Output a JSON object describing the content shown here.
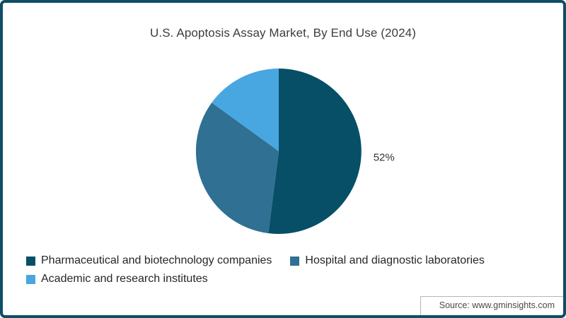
{
  "window": {
    "background_color": "#ffffff",
    "frame_border_color": "#0f4e66"
  },
  "chart_data": {
    "type": "pie",
    "title": "U.S. Apoptosis Assay Market, By End Use (2024)",
    "unit": "percent",
    "start_angle_deg": 0,
    "direction": "clockwise",
    "legend_position": "bottom-left",
    "grid": false,
    "source": "Source: www.gminsights.com",
    "slices": [
      {
        "name": "Pharmaceutical and biotechnology companies",
        "value": 52,
        "color": "#064f67",
        "data_label": "52%"
      },
      {
        "name": "Hospital and diagnostic laboratories",
        "value": 33,
        "color": "#2f7093",
        "data_label": ""
      },
      {
        "name": "Academic and research institutes",
        "value": 15,
        "color": "#48a7e0",
        "data_label": ""
      }
    ]
  },
  "text_colors": {
    "title": "#3d3d3d",
    "legend": "#262626",
    "data_label": "#333333",
    "source": "#4a4a4a"
  }
}
